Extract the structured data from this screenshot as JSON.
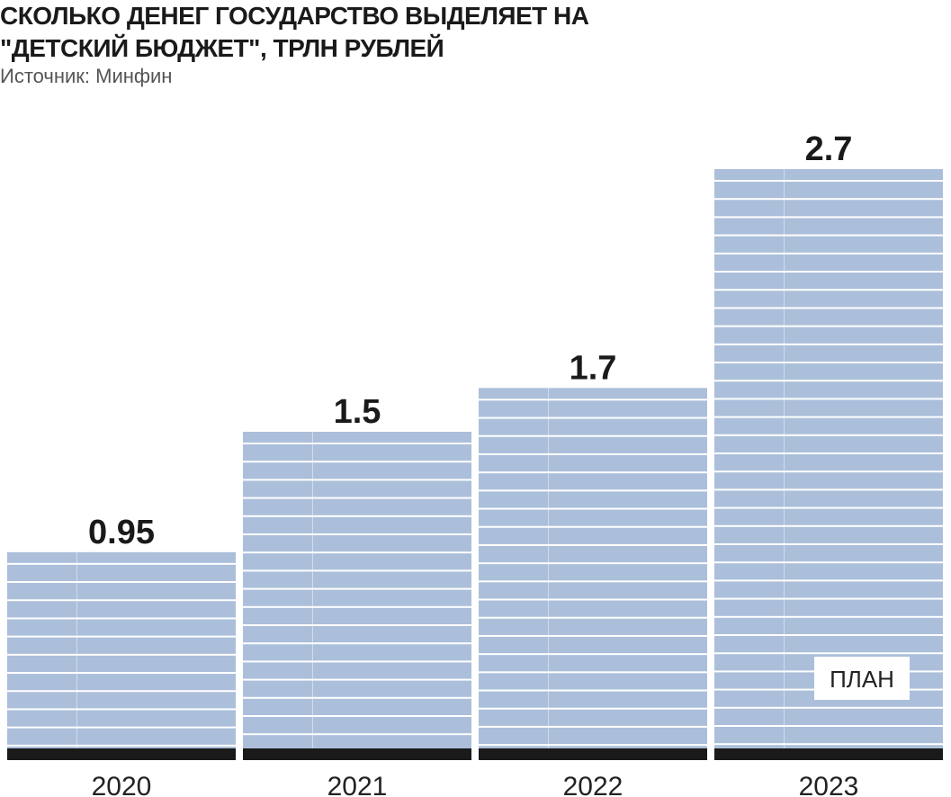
{
  "chart_data": {
    "type": "bar",
    "title": "СКОЛЬКО ДЕНЕГ ГОСУДАРСТВО ВЫДЕЛЯЕТ НА \"ДЕТСКИЙ БЮДЖЕТ\", ТРЛН РУБЛЕЙ",
    "subtitle": "Источник: Минфин",
    "categories": [
      "2020",
      "2021",
      "2022",
      "2023"
    ],
    "values": [
      0.95,
      1.5,
      1.7,
      2.7
    ],
    "color": "#abbfda",
    "annotations": [
      {
        "text": "ПЛАН",
        "x": "2023"
      }
    ]
  }
}
